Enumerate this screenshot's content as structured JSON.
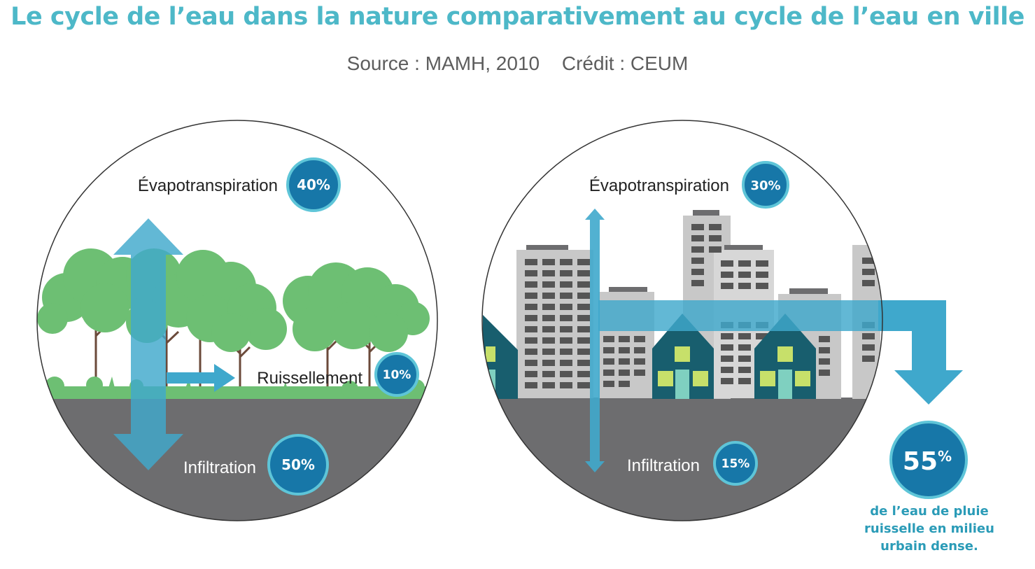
{
  "title": "Le cycle de l’eau dans la nature comparativement au cycle de l’eau en ville",
  "source": "Source : MAMH, 2010",
  "credit": "Crédit : CEUM",
  "nature": {
    "evapo_label": "Évapotranspiration",
    "evapo_pct": "40%",
    "runoff_label": "Ruissellement",
    "runoff_pct": "10%",
    "infiltration_label": "Infiltration",
    "infiltration_pct": "50%"
  },
  "city": {
    "evapo_label": "Évapotranspiration",
    "evapo_pct": "30%",
    "infiltration_label": "Infiltration",
    "infiltration_pct": "15%",
    "runoff_pct_value": "55",
    "runoff_pct_sign": "%",
    "runoff_note": [
      "de l’eau de pluie",
      "ruisselle en milieu",
      "urbain dense."
    ]
  },
  "colors": {
    "title": "#4db8c8",
    "badge_fill": "#1777a8",
    "badge_ring": "#5ec5d8",
    "arrow": "#3fa8cc",
    "ground": "#6d6d6f",
    "foliage": "#6dbf73",
    "building": "#c8c8c8",
    "house": "#185e6e"
  }
}
